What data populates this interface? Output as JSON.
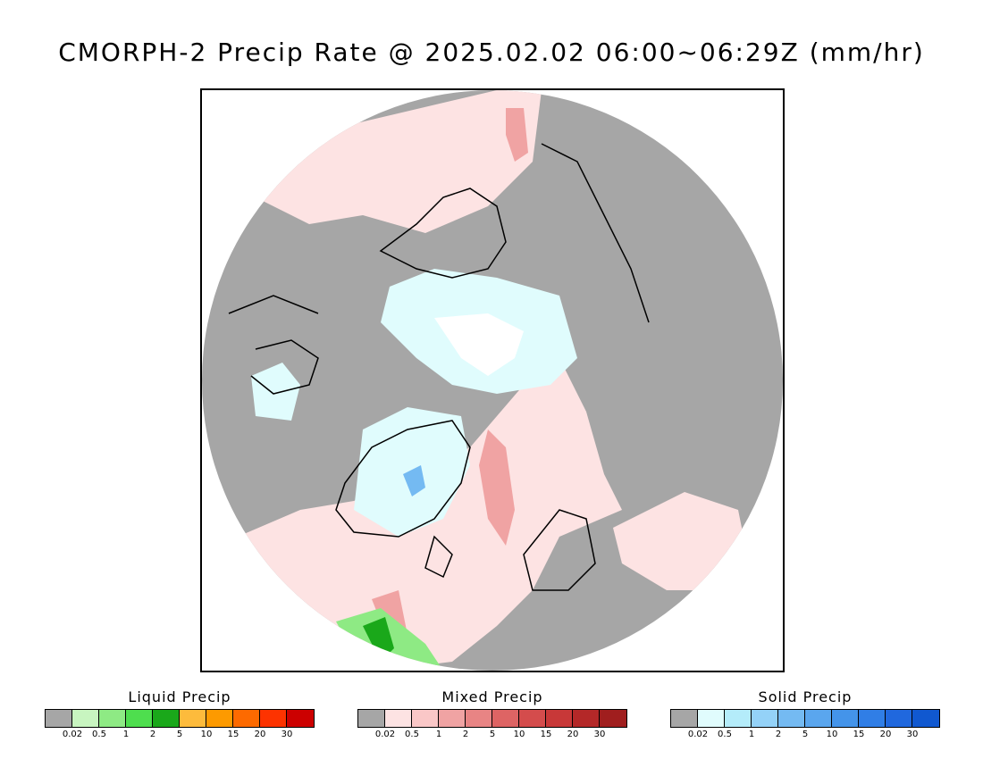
{
  "title": "CMORPH-2 Precip Rate @ 2025.02.02 06:00~06:29Z (mm/hr)",
  "legends": [
    {
      "title": "Liquid Precip",
      "colors": [
        "#a6a6a6",
        "#c8f5c0",
        "#8eea84",
        "#4ede4e",
        "#1aa81a",
        "#fdbb3c",
        "#fd9a00",
        "#fd6a00",
        "#fd3300",
        "#cc0000"
      ],
      "ticks": [
        "0.02",
        "0.5",
        "1",
        "2",
        "5",
        "10",
        "15",
        "20",
        "30"
      ]
    },
    {
      "title": "Mixed Precip",
      "colors": [
        "#a6a6a6",
        "#fde3e3",
        "#fac7c7",
        "#f0a3a3",
        "#e88484",
        "#de6464",
        "#d44c4c",
        "#c83838",
        "#b42828",
        "#a01e1e"
      ],
      "ticks": [
        "0.02",
        "0.5",
        "1",
        "2",
        "5",
        "10",
        "15",
        "20",
        "30"
      ]
    },
    {
      "title": "Solid Precip",
      "colors": [
        "#a6a6a6",
        "#e0fcfd",
        "#b4ecfa",
        "#94d2f8",
        "#74baf2",
        "#5aa6ee",
        "#4494ea",
        "#307ee6",
        "#2068de",
        "#1058d0"
      ],
      "ticks": [
        "0.02",
        "0.5",
        "1",
        "2",
        "5",
        "10",
        "15",
        "20",
        "30"
      ]
    }
  ],
  "map_colors": {
    "no_precip": "#a6a6a6",
    "mixed_light": "#fde3e3",
    "mixed_moderate": "#f0a3a3",
    "solid_light": "#e0fcfd",
    "solid_moderate": "#74baf2",
    "liquid_light": "#8eea84",
    "liquid_heavy": "#1aa81a",
    "no_data": "#ffffff",
    "coastline": "#000000"
  }
}
